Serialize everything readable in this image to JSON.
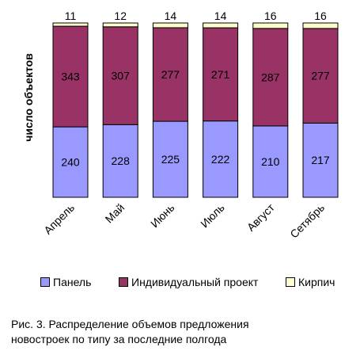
{
  "chart_data": {
    "type": "bar",
    "stacked": true,
    "categories": [
      "Апрель",
      "Май",
      "Июнь",
      "Июль",
      "Август",
      "Сетябрь"
    ],
    "series": [
      {
        "name": "Панель",
        "values": [
          240,
          228,
          225,
          222,
          210,
          217
        ],
        "color": "#9999ff"
      },
      {
        "name": "Индивидуальный проект",
        "values": [
          343,
          307,
          277,
          271,
          287,
          277
        ],
        "color": "#993366"
      },
      {
        "name": "Кирпич",
        "values": [
          11,
          12,
          14,
          14,
          16,
          16
        ],
        "color": "#ffffcc"
      }
    ],
    "ylabel": "число объектов",
    "xlabel": "",
    "normalized": "100% stacked",
    "grid": false,
    "legend_position": "bottom"
  },
  "caption": {
    "line1": "Рис. 3. Распределение объемов предложения",
    "line2": "новостроек по типу за последние полгода"
  }
}
